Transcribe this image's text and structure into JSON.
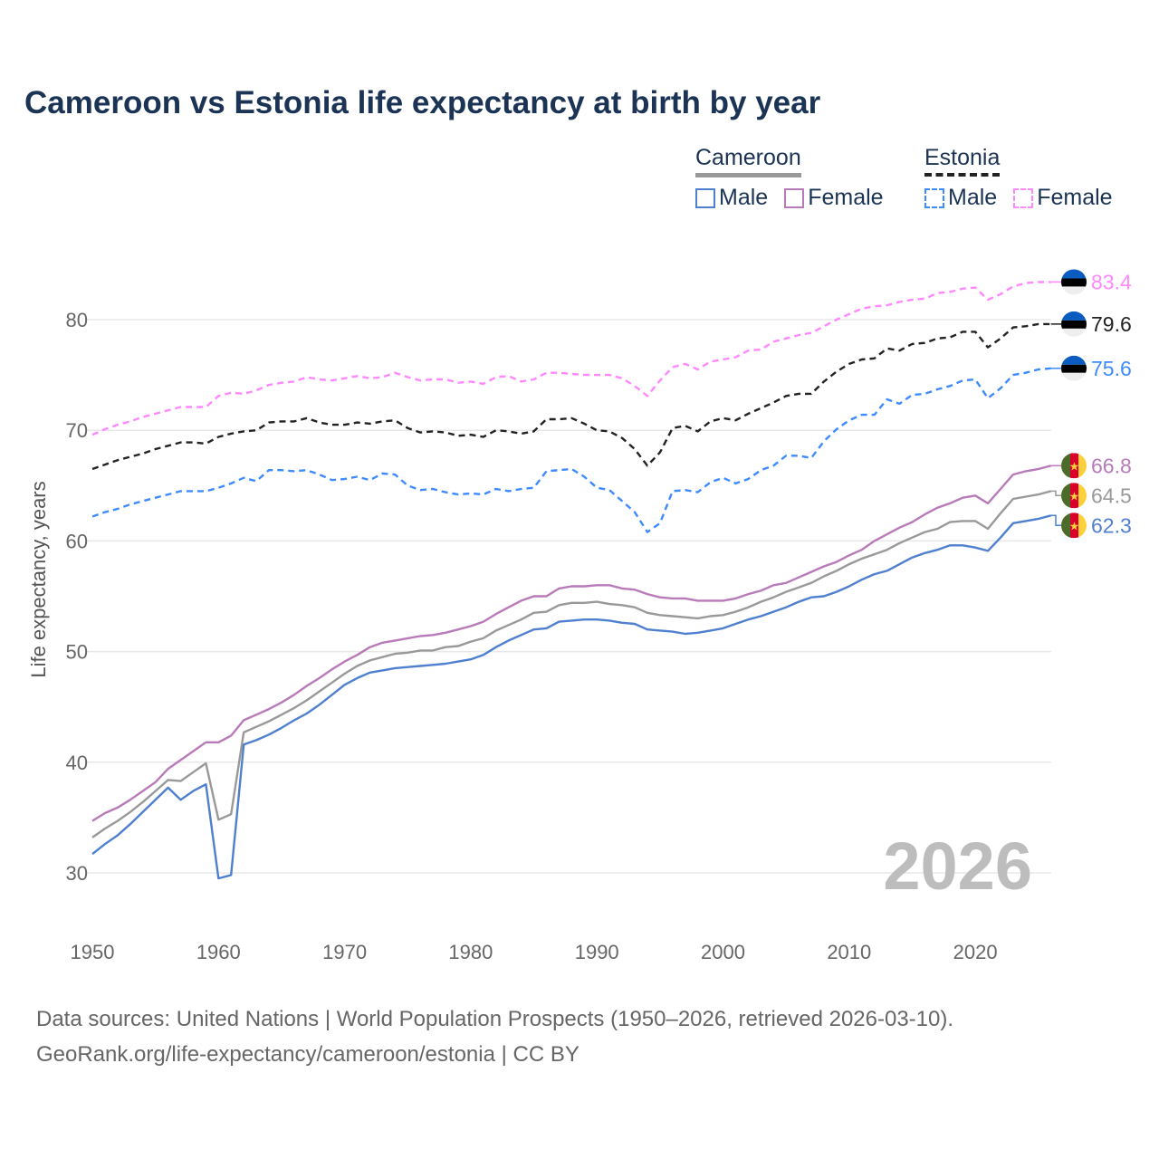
{
  "title": "Cameroon vs Estonia life expectancy at birth by year",
  "legend": {
    "groups": [
      {
        "name": "Cameroon",
        "line_color": "#999999",
        "dashed": false,
        "items": [
          {
            "label": "Male",
            "color": "#4f7fcf"
          },
          {
            "label": "Female",
            "color": "#b87ab8"
          }
        ]
      },
      {
        "name": "Estonia",
        "line_color": "#222222",
        "dashed": true,
        "items": [
          {
            "label": "Male",
            "color": "#3d8bff"
          },
          {
            "label": "Female",
            "color": "#ff88ff"
          }
        ]
      }
    ]
  },
  "year_watermark": "2026",
  "footer": {
    "line1": "Data sources: United Nations | World Population Prospects (1950–2026, retrieved 2026-03-10).",
    "line2": "GeoRank.org/life-expectancy/cameroon/estonia | CC BY"
  },
  "chart_data": {
    "type": "line",
    "title": "Cameroon vs Estonia life expectancy at birth by year",
    "xlabel": "",
    "ylabel": "Life expectancy, years",
    "xlim": [
      1950,
      2026
    ],
    "ylim": [
      25,
      85
    ],
    "x_ticks": [
      1950,
      1960,
      1970,
      1980,
      1990,
      2000,
      2010,
      2020
    ],
    "x_tick_labels": [
      "1950",
      "1960",
      "1970",
      "1980",
      "1990",
      "2000",
      "2010",
      "2020"
    ],
    "y_ticks": [
      30,
      40,
      50,
      60,
      70,
      80
    ],
    "y_tick_labels": [
      "30",
      "40",
      "50",
      "60",
      "70",
      "80"
    ],
    "grid": true,
    "legend_position": "top-right",
    "x_start": 1950,
    "series": [
      {
        "name": "Estonia Female",
        "country": "Estonia",
        "flag": "estonia",
        "color": "#ff88ff",
        "dashed": true,
        "end_label": "83.4",
        "values": [
          69.6,
          70.1,
          70.5,
          70.8,
          71.2,
          71.5,
          71.8,
          72.1,
          72.1,
          72.1,
          73.1,
          73.4,
          73.3,
          73.6,
          74.1,
          74.3,
          74.4,
          74.8,
          74.6,
          74.5,
          74.7,
          74.9,
          74.7,
          74.8,
          75.2,
          74.8,
          74.5,
          74.6,
          74.6,
          74.3,
          74.4,
          74.2,
          74.8,
          74.9,
          74.4,
          74.6,
          75.2,
          75.2,
          75.1,
          75.0,
          75.0,
          75.0,
          74.7,
          74.0,
          73.1,
          74.5,
          75.7,
          76.0,
          75.5,
          76.2,
          76.4,
          76.6,
          77.2,
          77.3,
          78.0,
          78.3,
          78.6,
          78.8,
          79.4,
          80.0,
          80.5,
          81.0,
          81.2,
          81.3,
          81.6,
          81.8,
          81.9,
          82.4,
          82.5,
          82.8,
          82.9,
          81.8,
          82.3,
          83.0,
          83.3,
          83.4,
          83.4
        ]
      },
      {
        "name": "Estonia",
        "country": "Estonia",
        "flag": "estonia",
        "color": "#222222",
        "dashed": true,
        "end_label": "79.6",
        "values": [
          66.5,
          66.9,
          67.3,
          67.6,
          67.9,
          68.3,
          68.6,
          68.9,
          68.9,
          68.8,
          69.4,
          69.7,
          69.9,
          70.0,
          70.7,
          70.8,
          70.8,
          71.1,
          70.7,
          70.5,
          70.5,
          70.7,
          70.6,
          70.8,
          70.9,
          70.2,
          69.8,
          69.9,
          69.8,
          69.5,
          69.6,
          69.4,
          70.0,
          69.9,
          69.7,
          69.9,
          71.0,
          71.0,
          71.1,
          70.6,
          70.0,
          69.9,
          69.3,
          68.3,
          66.8,
          68.0,
          70.2,
          70.4,
          69.9,
          70.8,
          71.1,
          70.9,
          71.5,
          72.0,
          72.5,
          73.1,
          73.3,
          73.3,
          74.4,
          75.3,
          76.0,
          76.4,
          76.5,
          77.4,
          77.2,
          77.8,
          77.9,
          78.3,
          78.4,
          78.9,
          78.9,
          77.5,
          78.3,
          79.3,
          79.4,
          79.6,
          79.6
        ]
      },
      {
        "name": "Estonia Male",
        "country": "Estonia",
        "flag": "estonia",
        "color": "#3d8bff",
        "dashed": true,
        "end_label": "75.6",
        "values": [
          62.2,
          62.6,
          62.9,
          63.3,
          63.6,
          63.9,
          64.2,
          64.5,
          64.5,
          64.5,
          64.8,
          65.2,
          65.7,
          65.4,
          66.4,
          66.4,
          66.3,
          66.4,
          66.0,
          65.5,
          65.6,
          65.8,
          65.5,
          66.1,
          66.0,
          65.0,
          64.6,
          64.7,
          64.4,
          64.2,
          64.3,
          64.2,
          64.7,
          64.5,
          64.7,
          64.8,
          66.3,
          66.4,
          66.5,
          65.8,
          64.8,
          64.6,
          63.6,
          62.6,
          60.8,
          61.6,
          64.5,
          64.6,
          64.4,
          65.3,
          65.7,
          65.2,
          65.6,
          66.4,
          66.8,
          67.7,
          67.7,
          67.5,
          69.0,
          70.1,
          70.9,
          71.4,
          71.4,
          72.8,
          72.4,
          73.2,
          73.3,
          73.7,
          74.0,
          74.5,
          74.6,
          72.9,
          73.8,
          75.0,
          75.2,
          75.5,
          75.6
        ]
      },
      {
        "name": "Cameroon Female",
        "country": "Cameroon",
        "flag": "cameroon",
        "color": "#b87ab8",
        "dashed": false,
        "end_label": "66.8",
        "values": [
          34.7,
          35.4,
          35.9,
          36.6,
          37.4,
          38.2,
          39.4,
          40.2,
          41.0,
          41.8,
          41.8,
          42.4,
          43.8,
          44.3,
          44.8,
          45.4,
          46.1,
          46.9,
          47.6,
          48.4,
          49.1,
          49.7,
          50.4,
          50.8,
          51.0,
          51.2,
          51.4,
          51.5,
          51.7,
          52.0,
          52.3,
          52.7,
          53.4,
          54.0,
          54.6,
          55.0,
          55.0,
          55.7,
          55.9,
          55.9,
          56.0,
          56.0,
          55.7,
          55.6,
          55.2,
          54.9,
          54.8,
          54.8,
          54.6,
          54.6,
          54.6,
          54.8,
          55.2,
          55.5,
          56.0,
          56.2,
          56.7,
          57.2,
          57.7,
          58.1,
          58.7,
          59.2,
          60.0,
          60.6,
          61.2,
          61.7,
          62.4,
          63.0,
          63.4,
          63.9,
          64.1,
          63.4,
          64.7,
          66.0,
          66.3,
          66.5,
          66.8
        ]
      },
      {
        "name": "Cameroon",
        "country": "Cameroon",
        "flag": "cameroon",
        "color": "#999999",
        "dashed": false,
        "end_label": "64.5",
        "values": [
          33.2,
          34.0,
          34.7,
          35.5,
          36.4,
          37.4,
          38.4,
          38.3,
          39.1,
          39.9,
          34.8,
          35.3,
          42.7,
          43.2,
          43.7,
          44.3,
          44.9,
          45.6,
          46.4,
          47.2,
          48.0,
          48.7,
          49.2,
          49.5,
          49.8,
          49.9,
          50.1,
          50.1,
          50.4,
          50.5,
          50.9,
          51.2,
          51.9,
          52.4,
          52.9,
          53.5,
          53.6,
          54.2,
          54.4,
          54.4,
          54.5,
          54.3,
          54.2,
          54.0,
          53.5,
          53.3,
          53.2,
          53.1,
          53.0,
          53.2,
          53.3,
          53.6,
          54.0,
          54.5,
          54.9,
          55.4,
          55.8,
          56.2,
          56.8,
          57.3,
          57.9,
          58.4,
          58.8,
          59.2,
          59.8,
          60.3,
          60.8,
          61.1,
          61.7,
          61.8,
          61.8,
          61.1,
          62.5,
          63.8,
          64.0,
          64.2,
          64.5
        ]
      },
      {
        "name": "Cameroon Male",
        "country": "Cameroon",
        "flag": "cameroon",
        "color": "#4f7fcf",
        "dashed": false,
        "end_label": "62.3",
        "values": [
          31.7,
          32.6,
          33.4,
          34.4,
          35.5,
          36.6,
          37.7,
          36.6,
          37.4,
          38.0,
          29.5,
          29.8,
          41.6,
          42.0,
          42.5,
          43.1,
          43.8,
          44.4,
          45.2,
          46.1,
          47.0,
          47.6,
          48.1,
          48.3,
          48.5,
          48.6,
          48.7,
          48.8,
          48.9,
          49.1,
          49.3,
          49.7,
          50.4,
          51.0,
          51.5,
          52.0,
          52.1,
          52.7,
          52.8,
          52.9,
          52.9,
          52.8,
          52.6,
          52.5,
          52.0,
          51.9,
          51.8,
          51.6,
          51.7,
          51.9,
          52.1,
          52.5,
          52.9,
          53.2,
          53.6,
          54.0,
          54.5,
          54.9,
          55.0,
          55.4,
          55.9,
          56.5,
          57.0,
          57.3,
          57.9,
          58.5,
          58.9,
          59.2,
          59.6,
          59.6,
          59.4,
          59.1,
          60.3,
          61.6,
          61.8,
          62.0,
          62.3
        ]
      }
    ]
  }
}
